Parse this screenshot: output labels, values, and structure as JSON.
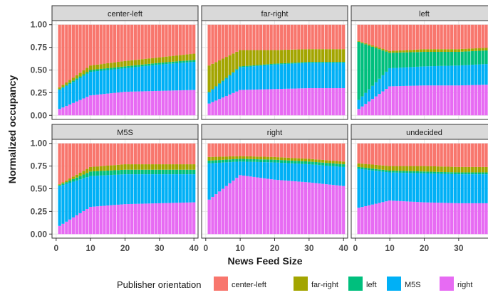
{
  "chart_data": {
    "type": "area",
    "layout": "faceted stacked bar (3 columns x 2 rows)",
    "ylabel": "Normalized occupancy",
    "xlabel": "News Feed Size",
    "xlim": [
      0,
      40
    ],
    "ylim": [
      0,
      1
    ],
    "x_ticks": [
      0,
      10,
      20,
      30,
      40
    ],
    "y_ticks": [
      "0.00",
      "0.25",
      "0.50",
      "0.75",
      "1.00"
    ],
    "x": [
      1,
      10,
      20,
      30,
      40
    ],
    "stack_order": [
      "right",
      "M5S",
      "left",
      "far-right",
      "center-left"
    ],
    "colors": {
      "center-left": "#F8766D",
      "far-right": "#A3A500",
      "left": "#00BF7D",
      "M5S": "#00B0F6",
      "right": "#E76BF3"
    },
    "legend": {
      "title": "Publisher orientation",
      "items": [
        "center-left",
        "far-right",
        "left",
        "M5S",
        "right"
      ],
      "placement": "bottom"
    },
    "panels": [
      {
        "title": "center-left",
        "series": [
          {
            "name": "right",
            "values": [
              0.07,
              0.22,
              0.26,
              0.27,
              0.28
            ]
          },
          {
            "name": "M5S",
            "values": [
              0.21,
              0.26,
              0.26,
              0.29,
              0.31
            ]
          },
          {
            "name": "left",
            "values": [
              0.01,
              0.02,
              0.02,
              0.02,
              0.02
            ]
          },
          {
            "name": "far-right",
            "values": [
              0.02,
              0.05,
              0.06,
              0.06,
              0.07
            ]
          },
          {
            "name": "center-left",
            "values": [
              0.69,
              0.45,
              0.4,
              0.36,
              0.32
            ]
          }
        ]
      },
      {
        "title": "far-right",
        "series": [
          {
            "name": "right",
            "values": [
              0.13,
              0.28,
              0.29,
              0.3,
              0.3
            ]
          },
          {
            "name": "M5S",
            "values": [
              0.12,
              0.25,
              0.27,
              0.28,
              0.28
            ]
          },
          {
            "name": "left",
            "values": [
              0.01,
              0.01,
              0.01,
              0.01,
              0.01
            ]
          },
          {
            "name": "far-right",
            "values": [
              0.29,
              0.18,
              0.15,
              0.14,
              0.14
            ]
          },
          {
            "name": "center-left",
            "values": [
              0.45,
              0.28,
              0.28,
              0.27,
              0.27
            ]
          }
        ]
      },
      {
        "title": "left",
        "series": [
          {
            "name": "right",
            "values": [
              0.07,
              0.32,
              0.33,
              0.33,
              0.34
            ]
          },
          {
            "name": "M5S",
            "values": [
              0.1,
              0.2,
              0.21,
              0.22,
              0.23
            ]
          },
          {
            "name": "left",
            "values": [
              0.64,
              0.17,
              0.16,
              0.15,
              0.15
            ]
          },
          {
            "name": "far-right",
            "values": [
              0.01,
              0.02,
              0.03,
              0.03,
              0.03
            ]
          },
          {
            "name": "center-left",
            "values": [
              0.18,
              0.29,
              0.27,
              0.27,
              0.25
            ]
          }
        ]
      },
      {
        "title": "M5S",
        "series": [
          {
            "name": "right",
            "values": [
              0.09,
              0.3,
              0.33,
              0.34,
              0.35
            ]
          },
          {
            "name": "M5S",
            "values": [
              0.44,
              0.34,
              0.33,
              0.32,
              0.31
            ]
          },
          {
            "name": "left",
            "values": [
              0.01,
              0.05,
              0.05,
              0.05,
              0.05
            ]
          },
          {
            "name": "far-right",
            "values": [
              0.01,
              0.05,
              0.06,
              0.06,
              0.06
            ]
          },
          {
            "name": "center-left",
            "values": [
              0.45,
              0.26,
              0.23,
              0.23,
              0.23
            ]
          }
        ]
      },
      {
        "title": "right",
        "series": [
          {
            "name": "right",
            "values": [
              0.38,
              0.65,
              0.6,
              0.57,
              0.53
            ]
          },
          {
            "name": "M5S",
            "values": [
              0.4,
              0.15,
              0.19,
              0.2,
              0.21
            ]
          },
          {
            "name": "left",
            "values": [
              0.03,
              0.03,
              0.03,
              0.03,
              0.03
            ]
          },
          {
            "name": "far-right",
            "values": [
              0.04,
              0.03,
              0.03,
              0.03,
              0.03
            ]
          },
          {
            "name": "center-left",
            "values": [
              0.15,
              0.14,
              0.15,
              0.17,
              0.2
            ]
          }
        ]
      },
      {
        "title": "undecided",
        "series": [
          {
            "name": "right",
            "values": [
              0.29,
              0.37,
              0.35,
              0.34,
              0.34
            ]
          },
          {
            "name": "M5S",
            "values": [
              0.43,
              0.31,
              0.32,
              0.32,
              0.32
            ]
          },
          {
            "name": "left",
            "values": [
              0.02,
              0.02,
              0.02,
              0.02,
              0.02
            ]
          },
          {
            "name": "far-right",
            "values": [
              0.04,
              0.05,
              0.06,
              0.06,
              0.06
            ]
          },
          {
            "name": "center-left",
            "values": [
              0.22,
              0.25,
              0.25,
              0.26,
              0.26
            ]
          }
        ]
      }
    ]
  }
}
